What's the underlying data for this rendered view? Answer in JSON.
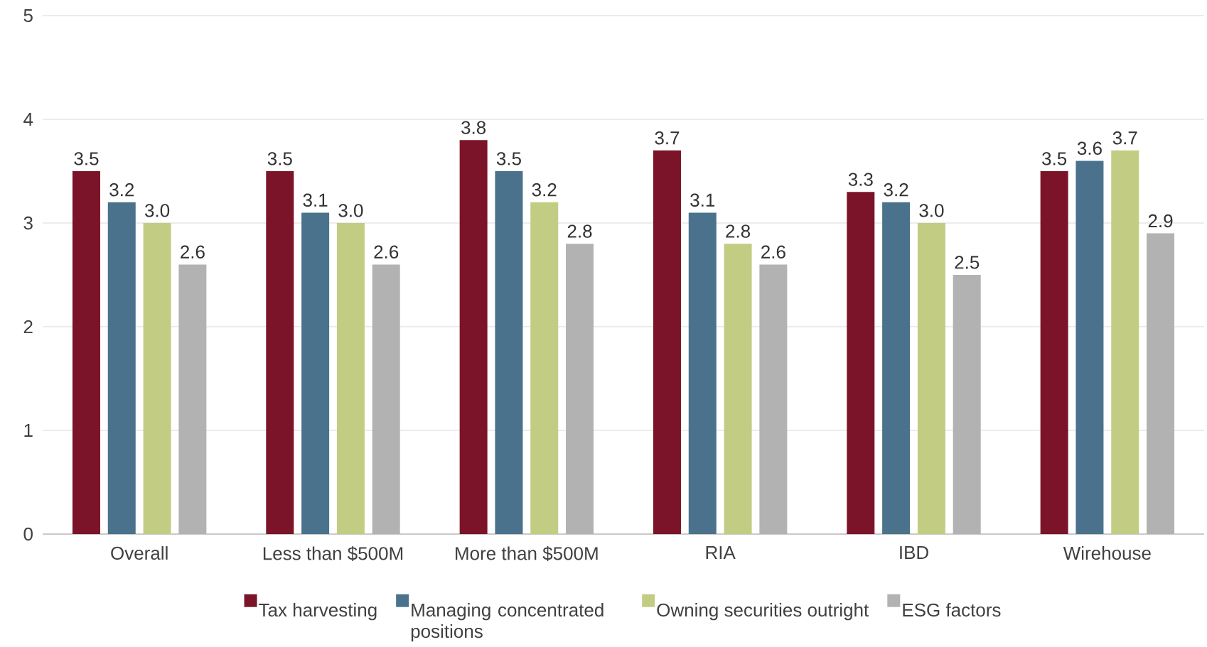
{
  "chart_data": {
    "type": "bar",
    "categories": [
      "Overall",
      "Less than $500M",
      "More than $500M",
      "RIA",
      "IBD",
      "Wirehouse"
    ],
    "series": [
      {
        "name": "Tax harvesting",
        "color": "#7b1428",
        "values": [
          3.5,
          3.5,
          3.8,
          3.7,
          3.3,
          3.5
        ],
        "value_labels": [
          "3.5",
          "3.5",
          "3.8",
          "3.7",
          "3.3",
          "3.5"
        ]
      },
      {
        "name": "Managing concentrated positions",
        "color": "#4a728c",
        "values": [
          3.2,
          3.1,
          3.5,
          3.1,
          3.2,
          3.6
        ],
        "value_labels": [
          "3.2",
          "3.1",
          "3.5",
          "3.1",
          "3.2",
          "3.6"
        ]
      },
      {
        "name": "Owning securities outright",
        "color": "#c2cd83",
        "values": [
          3.0,
          3.0,
          3.2,
          2.8,
          3.0,
          3.7
        ],
        "value_labels": [
          "3.0",
          "3.0",
          "3.2",
          "2.8",
          "3.0",
          "3.7"
        ]
      },
      {
        "name": "ESG factors",
        "color": "#b2b2b2",
        "values": [
          2.6,
          2.6,
          2.8,
          2.6,
          2.5,
          2.9
        ],
        "value_labels": [
          "2.6",
          "2.6",
          "2.8",
          "2.6",
          "2.5",
          "2.9"
        ]
      }
    ],
    "ylim": [
      0,
      5
    ],
    "yticks": [
      0,
      1,
      2,
      3,
      4,
      5
    ],
    "grid": "y",
    "legend": "bottom"
  }
}
